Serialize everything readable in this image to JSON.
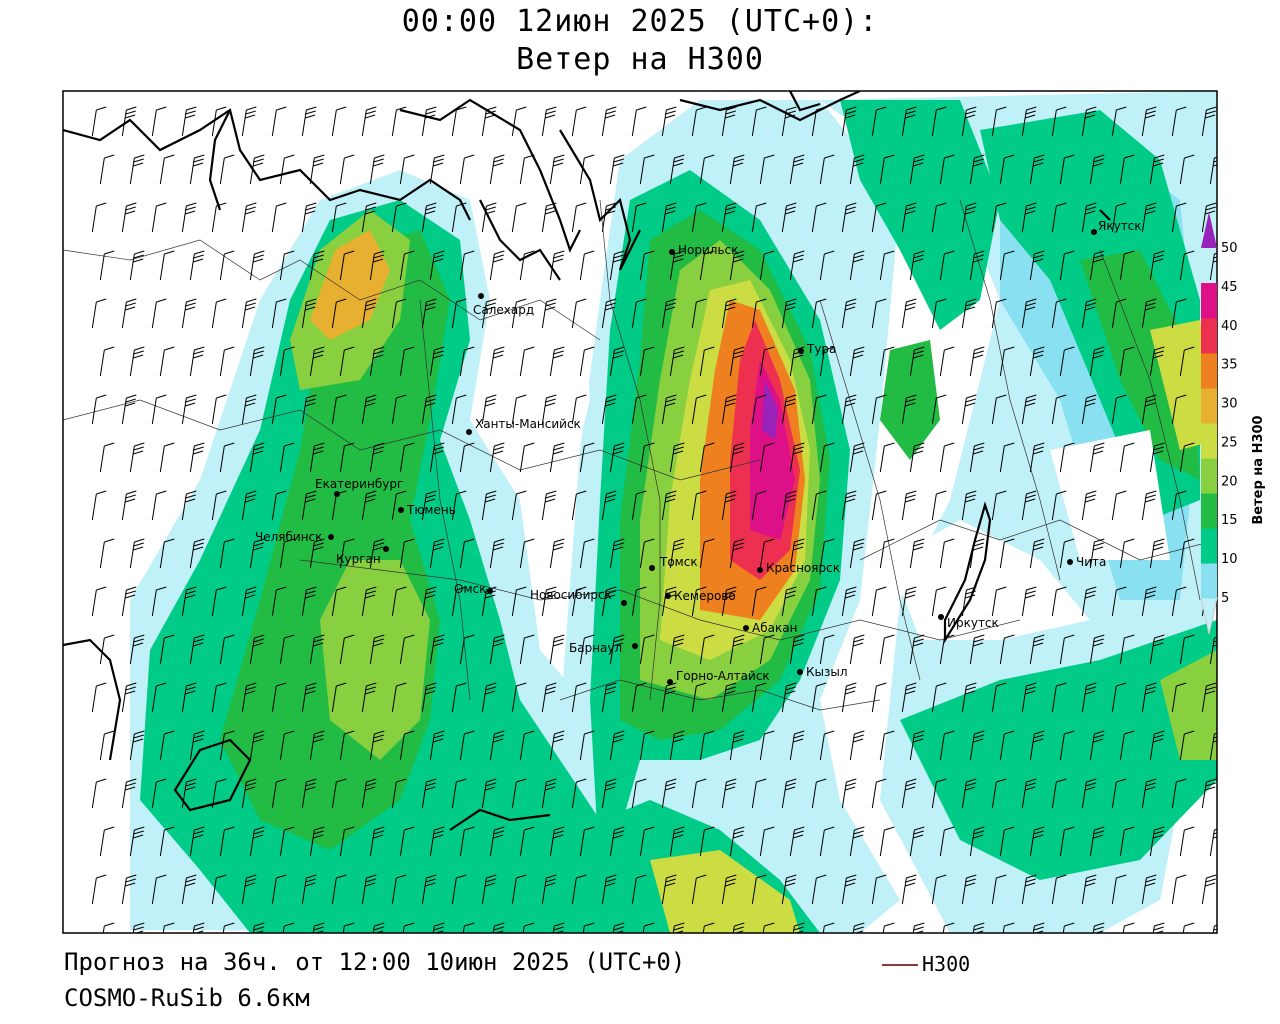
{
  "header": {
    "line1": "00:00 12июн 2025 (UTC+0):",
    "line2": "Ветер на H300"
  },
  "footer": {
    "forecast": "Прогноз на 36ч. от 12:00 10июн 2025 (UTC+0)",
    "model": "COSMO-RuSib 6.6км",
    "line_legend": "H300"
  },
  "colorbar": {
    "title": "Ветер на H300",
    "ticks": [
      "5",
      "10",
      "15",
      "20",
      "25",
      "30",
      "35",
      "40",
      "45",
      "50"
    ],
    "colors": [
      "#c0f0f8",
      "#88e0f0",
      "#00cc88",
      "#22bb44",
      "#88d040",
      "#ccdd44",
      "#e8b030",
      "#ee8020",
      "#ee3050",
      "#dd1088",
      "#9922bb"
    ]
  },
  "cities": [
    {
      "name": "Якутск"
    },
    {
      "name": "Норильск"
    },
    {
      "name": "Салехард"
    },
    {
      "name": "Тура"
    },
    {
      "name": "Ханты-Мансийск"
    },
    {
      "name": "Екатеринбург"
    },
    {
      "name": "Тюмень"
    },
    {
      "name": "Челябинск"
    },
    {
      "name": "Курган"
    },
    {
      "name": "Омск"
    },
    {
      "name": "Новосибирск"
    },
    {
      "name": "Томск"
    },
    {
      "name": "Кемерово"
    },
    {
      "name": "Красноярск"
    },
    {
      "name": "Барнаул"
    },
    {
      "name": "Абакан"
    },
    {
      "name": "Горно-Алтайск"
    },
    {
      "name": "Кызыл"
    },
    {
      "name": "Иркутск"
    },
    {
      "name": "Чита"
    }
  ]
}
